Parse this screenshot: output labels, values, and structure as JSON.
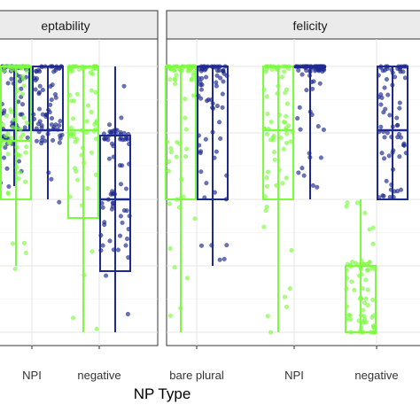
{
  "chart_data": {
    "type": "boxplot",
    "title": "",
    "xlabel": "NP Type",
    "ylabel": "",
    "ylim": [
      0,
      1
    ],
    "series_colors": [
      "#7cfc3f",
      "#1e2a8f"
    ],
    "panels": [
      {
        "name": "eptability",
        "categories": [
          "",
          "NPI",
          "negative"
        ],
        "boxes": [
          {
            "category": "",
            "series": 0,
            "min": 0.02,
            "q1": 0.5,
            "median": 0.78,
            "q3": 1.0,
            "max": 1.0
          },
          {
            "category": "",
            "series": 1,
            "min": 0.55,
            "q1": 0.76,
            "median": 0.76,
            "q3": 1.0,
            "max": 1.0
          },
          {
            "category": "NPI",
            "series": 0,
            "min": 0.25,
            "q1": 0.5,
            "median": 0.72,
            "q3": 1.0,
            "max": 1.0
          },
          {
            "category": "NPI",
            "series": 1,
            "min": 0.5,
            "q1": 0.76,
            "median": 0.76,
            "q3": 1.0,
            "max": 1.0
          },
          {
            "category": "negative",
            "series": 0,
            "min": 0.0,
            "q1": 0.43,
            "median": 0.76,
            "q3": 1.0,
            "max": 1.0
          },
          {
            "category": "negative",
            "series": 1,
            "min": 0.0,
            "q1": 0.23,
            "median": 0.5,
            "q3": 0.74,
            "max": 1.0
          }
        ]
      },
      {
        "name": "felicity",
        "categories": [
          "bare plural",
          "NPI",
          "negative"
        ],
        "boxes": [
          {
            "category": "bare plural",
            "series": 0,
            "min": 0.0,
            "q1": 0.5,
            "median": 1.0,
            "q3": 1.0,
            "max": 1.0
          },
          {
            "category": "bare plural",
            "series": 1,
            "min": 0.25,
            "q1": 0.5,
            "median": 1.0,
            "q3": 1.0,
            "max": 1.0
          },
          {
            "category": "NPI",
            "series": 0,
            "min": 0.0,
            "q1": 0.5,
            "median": 0.76,
            "q3": 1.0,
            "max": 1.0
          },
          {
            "category": "NPI",
            "series": 1,
            "min": 0.5,
            "q1": 1.0,
            "median": 1.0,
            "q3": 1.0,
            "max": 1.0
          },
          {
            "category": "negative",
            "series": 0,
            "min": 0.0,
            "q1": 0.0,
            "median": 0.0,
            "q3": 0.25,
            "max": 0.5
          },
          {
            "category": "negative",
            "series": 1,
            "min": 0.5,
            "q1": 0.5,
            "median": 0.76,
            "q3": 1.0,
            "max": 1.0
          }
        ]
      }
    ],
    "jitter_points_per_box": 70,
    "grid": true
  }
}
